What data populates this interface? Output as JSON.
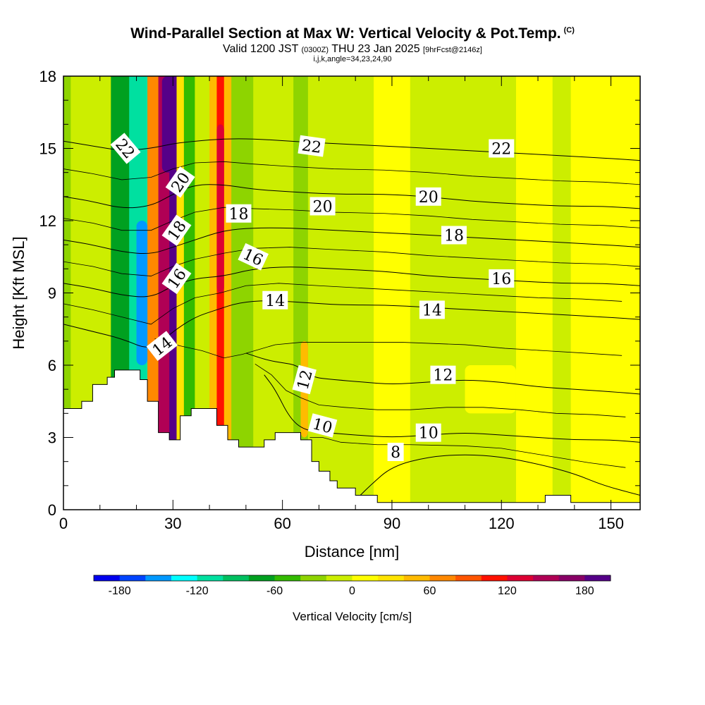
{
  "header": {
    "title": "Wind-Parallel Section at Max W: Vertical Velocity & Pot.Temp.",
    "copyright": "(C)",
    "subtitle_a": "Valid 1200 JST",
    "subtitle_b": "(0300Z)",
    "subtitle_c": "THU 23 Jan 2025",
    "subtitle_d": "[9hrFcst@2146z]",
    "params": "i,j,k,angle=34,23,24,90"
  },
  "chart_data": {
    "type": "heatmap",
    "xlabel": "Distance [nm]",
    "ylabel": "Height [Kft MSL]",
    "xlim": [
      0,
      158
    ],
    "ylim": [
      0,
      18
    ],
    "x_ticks": [
      "0",
      "30",
      "60",
      "90",
      "120",
      "150"
    ],
    "y_ticks": [
      "0",
      "3",
      "6",
      "9",
      "12",
      "15",
      "18"
    ],
    "colorbar": {
      "title": "Vertical Velocity [cm/s]",
      "range": [
        -200,
        200
      ],
      "step": 20,
      "tick_labels": [
        "-180",
        "-120",
        "-60",
        "0",
        "60",
        "120",
        "180"
      ],
      "colors": [
        "#0000ee",
        "#0044ff",
        "#0099ff",
        "#00ffff",
        "#00e0a0",
        "#00c060",
        "#00a020",
        "#33bb00",
        "#8ed400",
        "#ccee00",
        "#ffff00",
        "#ffe400",
        "#ffbb00",
        "#ff8800",
        "#ff5500",
        "#ff1100",
        "#dd0033",
        "#b00055",
        "#880066",
        "#550088"
      ]
    },
    "terrain_kft": [
      [
        0,
        4.2
      ],
      [
        5,
        4.2
      ],
      [
        5,
        4.5
      ],
      [
        8,
        4.5
      ],
      [
        8,
        5.2
      ],
      [
        12,
        5.2
      ],
      [
        12,
        5.5
      ],
      [
        14,
        5.5
      ],
      [
        14,
        5.8
      ],
      [
        21,
        5.8
      ],
      [
        21,
        5.4
      ],
      [
        23,
        5.4
      ],
      [
        23,
        4.5
      ],
      [
        26,
        4.5
      ],
      [
        26,
        3.2
      ],
      [
        29,
        3.2
      ],
      [
        29,
        2.9
      ],
      [
        32,
        2.9
      ],
      [
        32,
        3.9
      ],
      [
        35,
        3.9
      ],
      [
        35,
        4.2
      ],
      [
        42,
        4.2
      ],
      [
        42,
        3.5
      ],
      [
        45,
        3.5
      ],
      [
        45,
        2.9
      ],
      [
        48,
        2.9
      ],
      [
        48,
        2.6
      ],
      [
        55,
        2.6
      ],
      [
        55,
        2.9
      ],
      [
        58,
        2.9
      ],
      [
        58,
        3.2
      ],
      [
        65,
        3.2
      ],
      [
        65,
        2.9
      ],
      [
        68,
        2.9
      ],
      [
        68,
        2.0
      ],
      [
        70,
        2.0
      ],
      [
        70,
        1.6
      ],
      [
        73,
        1.6
      ],
      [
        73,
        1.2
      ],
      [
        75,
        1.2
      ],
      [
        75,
        0.9
      ],
      [
        80,
        0.9
      ],
      [
        80,
        0.6
      ],
      [
        86,
        0.6
      ],
      [
        86,
        0.3
      ],
      [
        132,
        0.3
      ],
      [
        132,
        0.6
      ],
      [
        139,
        0.6
      ],
      [
        139,
        0.3
      ],
      [
        158,
        0.3
      ]
    ],
    "w_bands": [
      {
        "x": [
          0,
          2
        ],
        "w": -40
      },
      {
        "x": [
          2,
          13
        ],
        "w": -20
      },
      {
        "x": [
          13,
          18
        ],
        "w": -70
      },
      {
        "x": [
          18,
          23
        ],
        "w": -115
      },
      {
        "x": [
          23,
          26
        ],
        "w": 70
      },
      {
        "x": [
          26,
          29
        ],
        "w": 150
      },
      {
        "x": [
          29,
          31
        ],
        "w": 195
      },
      {
        "x": [
          31,
          33
        ],
        "w": 20
      },
      {
        "x": [
          33,
          36
        ],
        "w": -55
      },
      {
        "x": [
          36,
          40
        ],
        "w": -20
      },
      {
        "x": [
          40,
          42
        ],
        "w": 50
      },
      {
        "x": [
          42,
          44
        ],
        "w": 110
      },
      {
        "x": [
          44,
          46
        ],
        "w": 55
      },
      {
        "x": [
          46,
          52
        ],
        "w": -40
      },
      {
        "x": [
          52,
          63
        ],
        "w": -10
      },
      {
        "x": [
          63,
          67
        ],
        "w": -35
      },
      {
        "x": [
          67,
          72
        ],
        "w": -20
      },
      {
        "x": [
          72,
          85
        ],
        "w": -8
      },
      {
        "x": [
          85,
          95
        ],
        "w": 10
      },
      {
        "x": [
          95,
          110
        ],
        "w": -5
      },
      {
        "x": [
          110,
          124
        ],
        "w": -12
      },
      {
        "x": [
          124,
          134
        ],
        "w": 12
      },
      {
        "x": [
          134,
          139
        ],
        "w": -15
      },
      {
        "x": [
          139,
          158
        ],
        "w": 10
      }
    ],
    "theta_contours": [
      {
        "label": "8",
        "pts": [
          [
            80,
            0.4
          ],
          [
            84,
            1.0
          ],
          [
            90,
            1.8
          ],
          [
            100,
            2.2
          ],
          [
            110,
            2.3
          ],
          [
            120,
            2.2
          ],
          [
            130,
            1.9
          ],
          [
            140,
            1.5
          ],
          [
            148,
            1.0
          ],
          [
            158,
            0.6
          ]
        ]
      },
      {
        "label": "10",
        "pts": [
          [
            55,
            5.6
          ],
          [
            58,
            5.0
          ],
          [
            62,
            3.8
          ],
          [
            66,
            3.3
          ],
          [
            72,
            3.2
          ],
          [
            80,
            3.1
          ],
          [
            90,
            3.0
          ],
          [
            100,
            3.1
          ],
          [
            110,
            3.2
          ],
          [
            120,
            3.1
          ],
          [
            130,
            3.0
          ],
          [
            140,
            2.9
          ],
          [
            150,
            2.9
          ],
          [
            158,
            2.8
          ]
        ]
      },
      {
        "label": "12",
        "pts": [
          [
            50,
            6.5
          ],
          [
            56,
            6.2
          ],
          [
            60,
            6.1
          ],
          [
            64,
            6.0
          ],
          [
            68,
            5.5
          ],
          [
            74,
            5.4
          ],
          [
            82,
            5.3
          ],
          [
            90,
            5.2
          ],
          [
            100,
            5.3
          ],
          [
            110,
            5.4
          ],
          [
            120,
            5.3
          ],
          [
            130,
            5.1
          ],
          [
            140,
            5.0
          ],
          [
            150,
            4.9
          ],
          [
            158,
            4.8
          ]
        ]
      },
      {
        "label": "14",
        "pts": [
          [
            0,
            7.7
          ],
          [
            8,
            7.4
          ],
          [
            16,
            7.1
          ],
          [
            24,
            6.6
          ],
          [
            30,
            7.4
          ],
          [
            36,
            8.0
          ],
          [
            42,
            8.3
          ],
          [
            48,
            8.6
          ],
          [
            56,
            8.7
          ],
          [
            66,
            8.6
          ],
          [
            76,
            8.5
          ],
          [
            88,
            8.5
          ],
          [
            100,
            8.4
          ],
          [
            112,
            8.3
          ],
          [
            124,
            8.2
          ],
          [
            136,
            8.1
          ],
          [
            148,
            8.0
          ],
          [
            158,
            7.9
          ]
        ]
      },
      {
        "label": "16",
        "pts": [
          [
            0,
            9.4
          ],
          [
            8,
            9.2
          ],
          [
            16,
            8.9
          ],
          [
            24,
            8.8
          ],
          [
            30,
            9.3
          ],
          [
            36,
            9.6
          ],
          [
            44,
            9.7
          ],
          [
            52,
            10.0
          ],
          [
            62,
            10.1
          ],
          [
            74,
            10.0
          ],
          [
            88,
            9.9
          ],
          [
            100,
            9.7
          ],
          [
            112,
            9.6
          ],
          [
            124,
            9.5
          ],
          [
            136,
            9.4
          ],
          [
            148,
            9.4
          ],
          [
            158,
            9.3
          ]
        ]
      },
      {
        "label": "18",
        "pts": [
          [
            0,
            11.2
          ],
          [
            8,
            11.0
          ],
          [
            16,
            10.7
          ],
          [
            24,
            10.6
          ],
          [
            30,
            10.9
          ],
          [
            36,
            11.2
          ],
          [
            44,
            11.6
          ],
          [
            52,
            11.7
          ],
          [
            62,
            11.7
          ],
          [
            74,
            11.6
          ],
          [
            88,
            11.5
          ],
          [
            100,
            11.4
          ],
          [
            112,
            11.3
          ],
          [
            124,
            11.2
          ],
          [
            136,
            11.1
          ],
          [
            148,
            11.0
          ],
          [
            158,
            10.9
          ]
        ]
      },
      {
        "label": "20",
        "pts": [
          [
            0,
            13.0
          ],
          [
            8,
            12.8
          ],
          [
            16,
            12.5
          ],
          [
            24,
            12.6
          ],
          [
            30,
            13.1
          ],
          [
            36,
            13.5
          ],
          [
            44,
            13.5
          ],
          [
            52,
            13.3
          ],
          [
            62,
            13.2
          ],
          [
            74,
            13.1
          ],
          [
            88,
            13.1
          ],
          [
            100,
            13.0
          ],
          [
            112,
            12.8
          ],
          [
            124,
            12.7
          ],
          [
            136,
            12.6
          ],
          [
            148,
            12.6
          ],
          [
            158,
            12.5
          ]
        ]
      },
      {
        "label": "22",
        "pts": [
          [
            0,
            15.3
          ],
          [
            8,
            15.1
          ],
          [
            16,
            14.9
          ],
          [
            24,
            15.0
          ],
          [
            30,
            15.2
          ],
          [
            36,
            15.3
          ],
          [
            44,
            15.4
          ],
          [
            52,
            15.4
          ],
          [
            62,
            15.3
          ],
          [
            74,
            15.2
          ],
          [
            88,
            15.1
          ],
          [
            100,
            15.0
          ],
          [
            112,
            14.9
          ],
          [
            124,
            14.8
          ],
          [
            136,
            14.7
          ],
          [
            148,
            14.6
          ],
          [
            158,
            14.5
          ]
        ]
      }
    ],
    "contour_labels": [
      {
        "text": "22",
        "x": 17,
        "y": 15.0,
        "angle": 50
      },
      {
        "text": "20",
        "x": 32,
        "y": 13.6,
        "angle": -55
      },
      {
        "text": "18",
        "x": 31,
        "y": 11.6,
        "angle": -55
      },
      {
        "text": "16",
        "x": 31,
        "y": 9.6,
        "angle": -55
      },
      {
        "text": "14",
        "x": 27,
        "y": 6.8,
        "angle": -38
      },
      {
        "text": "18",
        "x": 48,
        "y": 12.3,
        "angle": 0
      },
      {
        "text": "16",
        "x": 52,
        "y": 10.5,
        "angle": 25
      },
      {
        "text": "14",
        "x": 58,
        "y": 8.7,
        "angle": 0
      },
      {
        "text": "12",
        "x": 66,
        "y": 5.4,
        "angle": -75
      },
      {
        "text": "10",
        "x": 71,
        "y": 3.5,
        "angle": 15
      },
      {
        "text": "22",
        "x": 68,
        "y": 15.1,
        "angle": 8
      },
      {
        "text": "20",
        "x": 71,
        "y": 12.6,
        "angle": 0
      },
      {
        "text": "22",
        "x": 120,
        "y": 15.0,
        "angle": 0
      },
      {
        "text": "20",
        "x": 100,
        "y": 13.0,
        "angle": 0
      },
      {
        "text": "18",
        "x": 107,
        "y": 11.4,
        "angle": 0
      },
      {
        "text": "16",
        "x": 120,
        "y": 9.6,
        "angle": 0
      },
      {
        "text": "14",
        "x": 101,
        "y": 8.3,
        "angle": 0
      },
      {
        "text": "12",
        "x": 104,
        "y": 5.6,
        "angle": 0
      },
      {
        "text": "10",
        "x": 100,
        "y": 3.2,
        "angle": 0
      },
      {
        "text": "8",
        "x": 91,
        "y": 2.4,
        "angle": 0
      }
    ]
  }
}
